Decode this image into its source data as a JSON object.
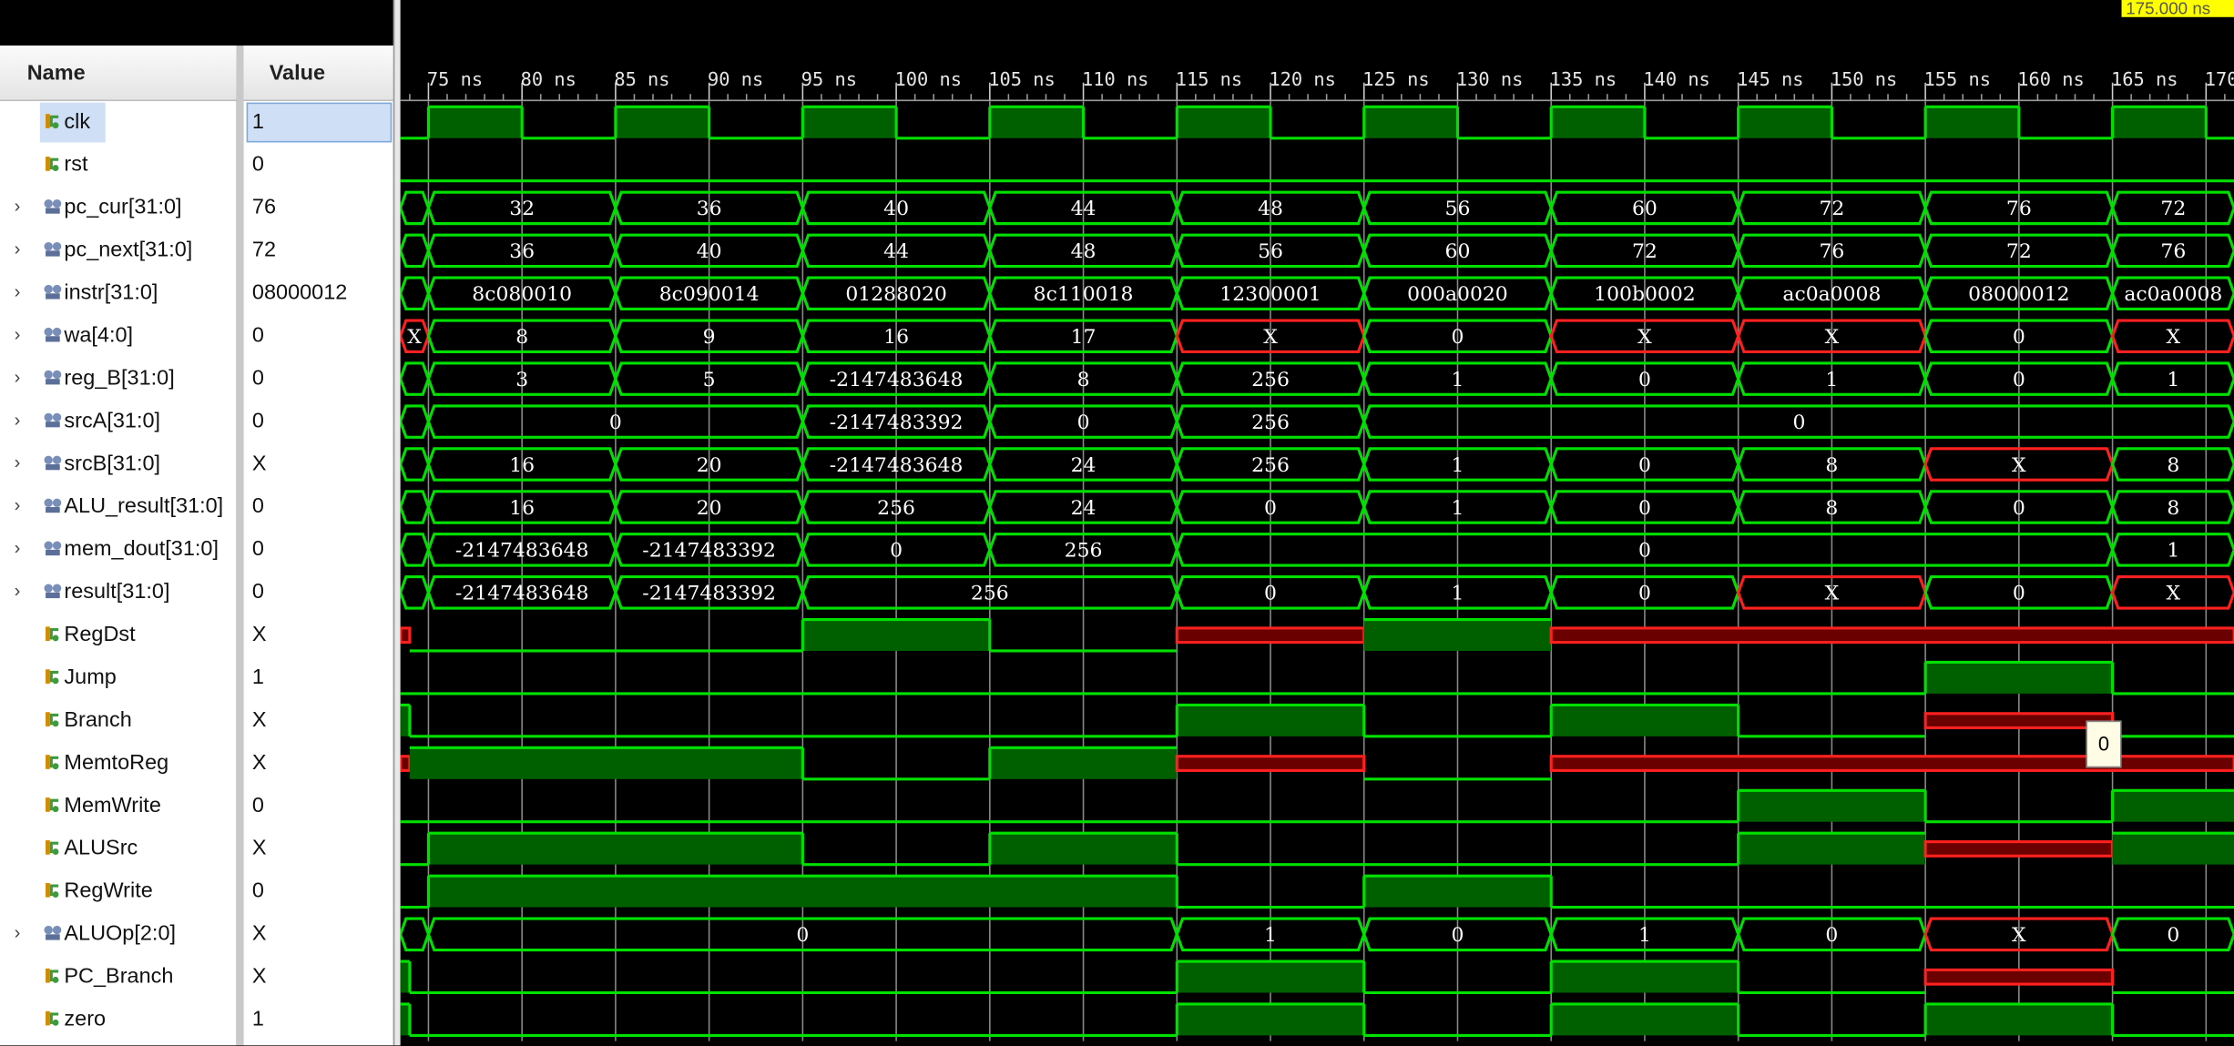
{
  "headers": {
    "name": "Name",
    "value": "Value"
  },
  "cursor_label": "175.000 ns",
  "tooltip_value": "0",
  "time_axis": {
    "start_ns": 73.5,
    "end_ns": 171.5,
    "label_times_ns": [
      75,
      80,
      85,
      90,
      95,
      100,
      105,
      110,
      115,
      120,
      125,
      130,
      135,
      140,
      145,
      150,
      155,
      160,
      165,
      170
    ],
    "labels": [
      "75 ns",
      "80 ns",
      "85 ns",
      "90 ns",
      "95 ns",
      "100 ns",
      "105 ns",
      "110 ns",
      "115 ns",
      "120 ns",
      "125 ns",
      "130 ns",
      "135 ns",
      "140 ns",
      "145 ns",
      "150 ns",
      "155 ns",
      "160 ns",
      "165 ns",
      "170 ns"
    ]
  },
  "colors": {
    "wave": "#00e000",
    "unknown": "#ff2020",
    "high_fill": "#006000",
    "x_fill": "#6a0000",
    "background": "#000000",
    "grid": "#8a8a8a"
  },
  "signals": [
    {
      "name": "clk",
      "value": "1",
      "type": "bit",
      "icon": "signal-bit-icon",
      "selected": true,
      "segments": [
        [
          73.5,
          75,
          "0"
        ],
        [
          75,
          80,
          "1"
        ],
        [
          80,
          85,
          "0"
        ],
        [
          85,
          90,
          "1"
        ],
        [
          90,
          95,
          "0"
        ],
        [
          95,
          100,
          "1"
        ],
        [
          100,
          105,
          "0"
        ],
        [
          105,
          110,
          "1"
        ],
        [
          110,
          115,
          "0"
        ],
        [
          115,
          120,
          "1"
        ],
        [
          120,
          125,
          "0"
        ],
        [
          125,
          130,
          "1"
        ],
        [
          130,
          135,
          "0"
        ],
        [
          135,
          140,
          "1"
        ],
        [
          140,
          145,
          "0"
        ],
        [
          145,
          150,
          "1"
        ],
        [
          150,
          155,
          "0"
        ],
        [
          155,
          160,
          "1"
        ],
        [
          160,
          165,
          "0"
        ],
        [
          165,
          170,
          "1"
        ],
        [
          170,
          171.5,
          "0"
        ]
      ]
    },
    {
      "name": "rst",
      "value": "0",
      "type": "bit",
      "icon": "signal-bit-icon",
      "segments": [
        [
          73.5,
          171.5,
          "0"
        ]
      ]
    },
    {
      "name": "pc_cur[31:0]",
      "value": "76",
      "type": "bus",
      "icon": "bus-icon",
      "segments": [
        [
          73.5,
          75,
          ""
        ],
        [
          75,
          85,
          "32"
        ],
        [
          85,
          95,
          "36"
        ],
        [
          95,
          105,
          "40"
        ],
        [
          105,
          115,
          "44"
        ],
        [
          115,
          125,
          "48"
        ],
        [
          125,
          135,
          "56"
        ],
        [
          135,
          145,
          "60"
        ],
        [
          145,
          155,
          "72"
        ],
        [
          155,
          165,
          "76"
        ],
        [
          165,
          171.5,
          "72"
        ]
      ]
    },
    {
      "name": "pc_next[31:0]",
      "value": "72",
      "type": "bus",
      "icon": "bus-icon",
      "segments": [
        [
          73.5,
          75,
          ""
        ],
        [
          75,
          85,
          "36"
        ],
        [
          85,
          95,
          "40"
        ],
        [
          95,
          105,
          "44"
        ],
        [
          105,
          115,
          "48"
        ],
        [
          115,
          125,
          "56"
        ],
        [
          125,
          135,
          "60"
        ],
        [
          135,
          145,
          "72"
        ],
        [
          145,
          155,
          "76"
        ],
        [
          155,
          165,
          "72"
        ],
        [
          165,
          171.5,
          "76"
        ]
      ]
    },
    {
      "name": "instr[31:0]",
      "value": "08000012",
      "type": "bus",
      "icon": "bus-icon",
      "segments": [
        [
          73.5,
          75,
          ""
        ],
        [
          75,
          85,
          "8c080010"
        ],
        [
          85,
          95,
          "8c090014"
        ],
        [
          95,
          105,
          "01288020"
        ],
        [
          105,
          115,
          "8c110018"
        ],
        [
          115,
          125,
          "12300001"
        ],
        [
          125,
          135,
          "000a0020"
        ],
        [
          135,
          145,
          "100b0002"
        ],
        [
          145,
          155,
          "ac0a0008"
        ],
        [
          155,
          165,
          "08000012"
        ],
        [
          165,
          171.5,
          "ac0a0008"
        ]
      ]
    },
    {
      "name": "wa[4:0]",
      "value": "0",
      "type": "bus",
      "icon": "bus-icon",
      "segments": [
        [
          73.5,
          75,
          "X"
        ],
        [
          75,
          85,
          "8"
        ],
        [
          85,
          95,
          "9"
        ],
        [
          95,
          105,
          "16"
        ],
        [
          105,
          115,
          "17"
        ],
        [
          115,
          125,
          "X"
        ],
        [
          125,
          135,
          "0"
        ],
        [
          135,
          145,
          "X"
        ],
        [
          145,
          155,
          "X"
        ],
        [
          155,
          165,
          "0"
        ],
        [
          165,
          171.5,
          "X"
        ]
      ]
    },
    {
      "name": "reg_B[31:0]",
      "value": "0",
      "type": "bus",
      "icon": "bus-icon",
      "segments": [
        [
          73.5,
          75,
          ""
        ],
        [
          75,
          85,
          "3"
        ],
        [
          85,
          95,
          "5"
        ],
        [
          95,
          105,
          "-2147483648"
        ],
        [
          105,
          115,
          "8"
        ],
        [
          115,
          125,
          "256"
        ],
        [
          125,
          135,
          "1"
        ],
        [
          135,
          145,
          "0"
        ],
        [
          145,
          155,
          "1"
        ],
        [
          155,
          165,
          "0"
        ],
        [
          165,
          171.5,
          "1"
        ]
      ]
    },
    {
      "name": "srcA[31:0]",
      "value": "0",
      "type": "bus",
      "icon": "bus-icon",
      "segments": [
        [
          73.5,
          75,
          ""
        ],
        [
          75,
          95,
          "0"
        ],
        [
          95,
          105,
          "-2147483392"
        ],
        [
          105,
          115,
          "0"
        ],
        [
          115,
          125,
          "256"
        ],
        [
          125,
          171.5,
          "0"
        ]
      ]
    },
    {
      "name": "srcB[31:0]",
      "value": "X",
      "type": "bus",
      "icon": "bus-icon",
      "segments": [
        [
          73.5,
          75,
          ""
        ],
        [
          75,
          85,
          "16"
        ],
        [
          85,
          95,
          "20"
        ],
        [
          95,
          105,
          "-2147483648"
        ],
        [
          105,
          115,
          "24"
        ],
        [
          115,
          125,
          "256"
        ],
        [
          125,
          135,
          "1"
        ],
        [
          135,
          145,
          "0"
        ],
        [
          145,
          155,
          "8"
        ],
        [
          155,
          165,
          "X"
        ],
        [
          165,
          171.5,
          "8"
        ]
      ]
    },
    {
      "name": "ALU_result[31:0]",
      "value": "0",
      "type": "bus",
      "icon": "bus-icon",
      "segments": [
        [
          73.5,
          75,
          ""
        ],
        [
          75,
          85,
          "16"
        ],
        [
          85,
          95,
          "20"
        ],
        [
          95,
          105,
          "256"
        ],
        [
          105,
          115,
          "24"
        ],
        [
          115,
          125,
          "0"
        ],
        [
          125,
          135,
          "1"
        ],
        [
          135,
          145,
          "0"
        ],
        [
          145,
          155,
          "8"
        ],
        [
          155,
          165,
          "0"
        ],
        [
          165,
          171.5,
          "8"
        ]
      ]
    },
    {
      "name": "mem_dout[31:0]",
      "value": "0",
      "type": "bus",
      "icon": "bus-icon",
      "segments": [
        [
          73.5,
          75,
          ""
        ],
        [
          75,
          85,
          "-2147483648"
        ],
        [
          85,
          95,
          "-2147483392"
        ],
        [
          95,
          105,
          "0"
        ],
        [
          105,
          115,
          "256"
        ],
        [
          115,
          165,
          "0"
        ],
        [
          165,
          171.5,
          "1"
        ]
      ]
    },
    {
      "name": "result[31:0]",
      "value": "0",
      "type": "bus",
      "icon": "bus-icon",
      "segments": [
        [
          73.5,
          75,
          ""
        ],
        [
          75,
          85,
          "-2147483648"
        ],
        [
          85,
          95,
          "-2147483392"
        ],
        [
          95,
          115,
          "256"
        ],
        [
          115,
          125,
          "0"
        ],
        [
          125,
          135,
          "1"
        ],
        [
          135,
          145,
          "0"
        ],
        [
          145,
          155,
          "X"
        ],
        [
          155,
          165,
          "0"
        ],
        [
          165,
          171.5,
          "X"
        ]
      ]
    },
    {
      "name": "RegDst",
      "value": "X",
      "type": "bit",
      "icon": "signal-bit-icon",
      "segments": [
        [
          73.5,
          74,
          "X"
        ],
        [
          74,
          95,
          "0"
        ],
        [
          95,
          105,
          "1"
        ],
        [
          105,
          115,
          "0"
        ],
        [
          115,
          125,
          "X"
        ],
        [
          125,
          135,
          "1"
        ],
        [
          135,
          171.5,
          "X"
        ]
      ]
    },
    {
      "name": "Jump",
      "value": "1",
      "type": "bit",
      "icon": "signal-bit-icon",
      "segments": [
        [
          73.5,
          155,
          "0"
        ],
        [
          155,
          165,
          "1"
        ],
        [
          165,
          171.5,
          "0"
        ]
      ]
    },
    {
      "name": "Branch",
      "value": "X",
      "type": "bit",
      "icon": "signal-bit-icon",
      "segments": [
        [
          73.5,
          74,
          "1"
        ],
        [
          74,
          115,
          "0"
        ],
        [
          115,
          125,
          "1"
        ],
        [
          125,
          135,
          "0"
        ],
        [
          135,
          145,
          "1"
        ],
        [
          145,
          155,
          "0"
        ],
        [
          155,
          165,
          "X"
        ],
        [
          165,
          171.5,
          "0"
        ]
      ]
    },
    {
      "name": "MemtoReg",
      "value": "X",
      "type": "bit",
      "icon": "signal-bit-icon",
      "segments": [
        [
          73.5,
          74,
          "X"
        ],
        [
          74,
          95,
          "1"
        ],
        [
          95,
          105,
          "0"
        ],
        [
          105,
          115,
          "1"
        ],
        [
          115,
          125,
          "X"
        ],
        [
          125,
          135,
          "0"
        ],
        [
          135,
          171.5,
          "X"
        ]
      ]
    },
    {
      "name": "MemWrite",
      "value": "0",
      "type": "bit",
      "icon": "signal-bit-icon",
      "segments": [
        [
          73.5,
          145,
          "0"
        ],
        [
          145,
          155,
          "1"
        ],
        [
          155,
          165,
          "0"
        ],
        [
          165,
          171.5,
          "1"
        ]
      ]
    },
    {
      "name": "ALUSrc",
      "value": "X",
      "type": "bit",
      "icon": "signal-bit-icon",
      "segments": [
        [
          73.5,
          75,
          "0"
        ],
        [
          75,
          95,
          "1"
        ],
        [
          95,
          105,
          "0"
        ],
        [
          105,
          115,
          "1"
        ],
        [
          115,
          145,
          "0"
        ],
        [
          145,
          155,
          "1"
        ],
        [
          155,
          165,
          "X"
        ],
        [
          165,
          171.5,
          "1"
        ]
      ]
    },
    {
      "name": "RegWrite",
      "value": "0",
      "type": "bit",
      "icon": "signal-bit-icon",
      "segments": [
        [
          73.5,
          75,
          "0"
        ],
        [
          75,
          115,
          "1"
        ],
        [
          115,
          125,
          "0"
        ],
        [
          125,
          135,
          "1"
        ],
        [
          135,
          171.5,
          "0"
        ]
      ]
    },
    {
      "name": "ALUOp[2:0]",
      "value": "X",
      "type": "bus",
      "icon": "bus-icon",
      "segments": [
        [
          73.5,
          75,
          ""
        ],
        [
          75,
          115,
          "0"
        ],
        [
          115,
          125,
          "1"
        ],
        [
          125,
          135,
          "0"
        ],
        [
          135,
          145,
          "1"
        ],
        [
          145,
          155,
          "0"
        ],
        [
          155,
          165,
          "X"
        ],
        [
          165,
          171.5,
          "0"
        ]
      ]
    },
    {
      "name": "PC_Branch",
      "value": "X",
      "type": "bit",
      "icon": "signal-bit-icon",
      "segments": [
        [
          73.5,
          74,
          "1"
        ],
        [
          74,
          115,
          "0"
        ],
        [
          115,
          125,
          "1"
        ],
        [
          125,
          135,
          "0"
        ],
        [
          135,
          145,
          "1"
        ],
        [
          145,
          155,
          "0"
        ],
        [
          155,
          165,
          "X"
        ],
        [
          165,
          171.5,
          "0"
        ]
      ]
    },
    {
      "name": "zero",
      "value": "1",
      "type": "bit",
      "icon": "signal-bit-icon",
      "segments": [
        [
          73.5,
          74,
          "1"
        ],
        [
          74,
          115,
          "0"
        ],
        [
          115,
          125,
          "1"
        ],
        [
          125,
          135,
          "0"
        ],
        [
          135,
          145,
          "1"
        ],
        [
          145,
          155,
          "0"
        ],
        [
          155,
          165,
          "1"
        ],
        [
          165,
          171.5,
          "0"
        ]
      ]
    }
  ]
}
